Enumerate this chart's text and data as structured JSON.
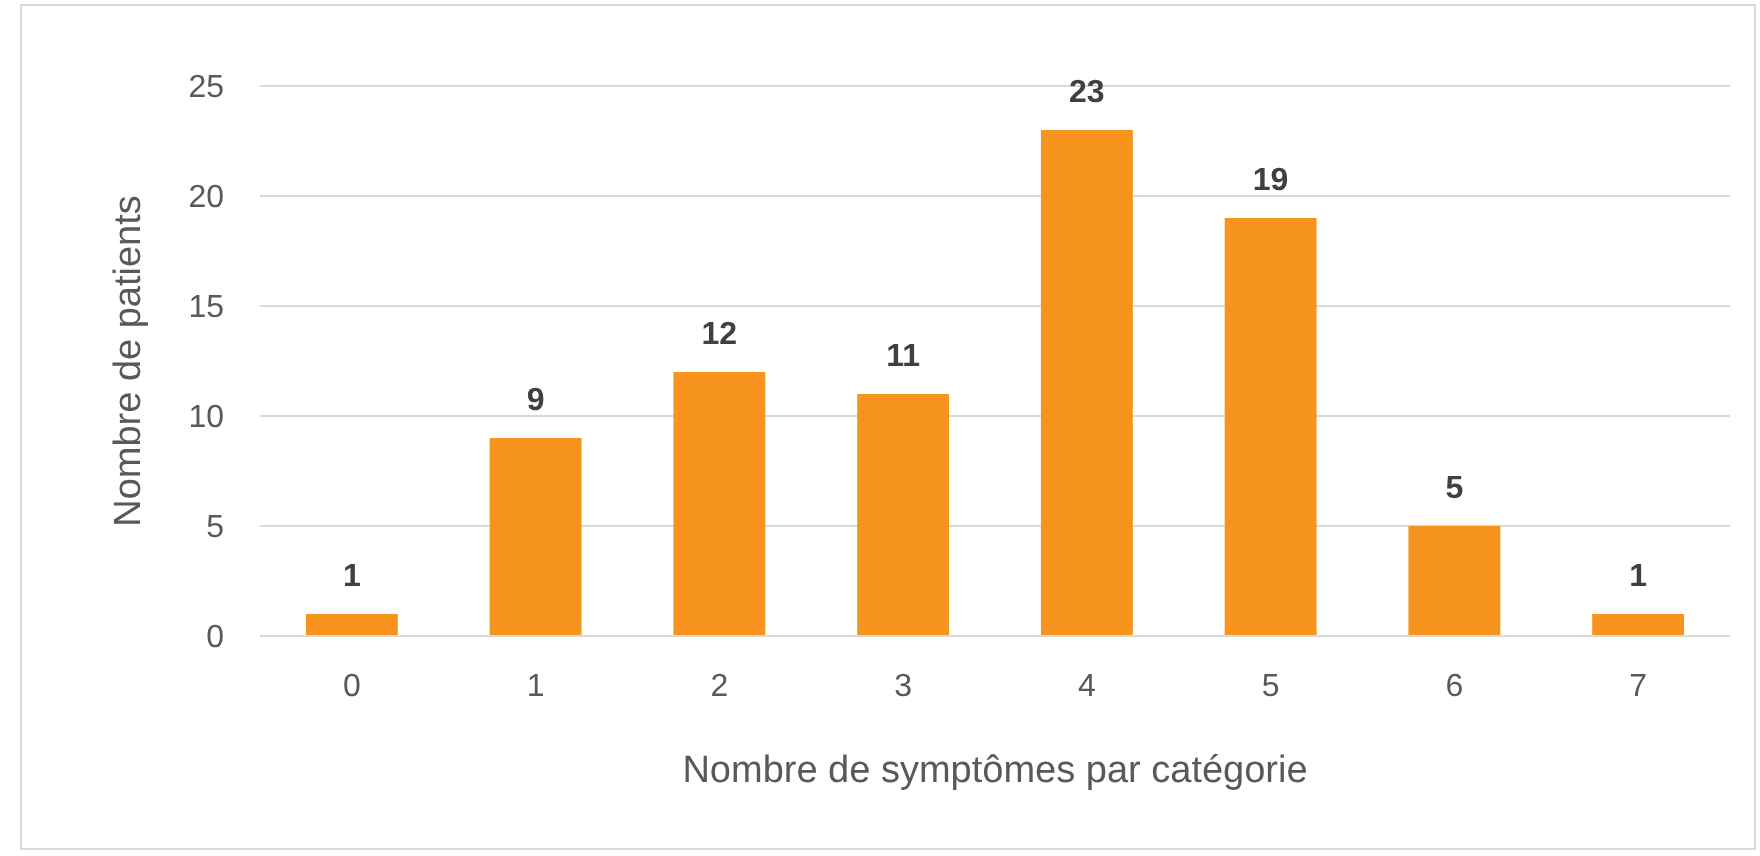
{
  "chart_data": {
    "type": "bar",
    "xlabel": "Nombre de symptômes par catégorie",
    "ylabel": "Nombre de patients",
    "categories": [
      "0",
      "1",
      "2",
      "3",
      "4",
      "5",
      "6",
      "7"
    ],
    "values": [
      1,
      9,
      12,
      11,
      23,
      19,
      5,
      1
    ],
    "color": "#f7941d",
    "ylim": [
      0,
      25
    ],
    "yticks": [
      0,
      5,
      10,
      15,
      20,
      25
    ],
    "grid": "y",
    "data_labels": true
  }
}
